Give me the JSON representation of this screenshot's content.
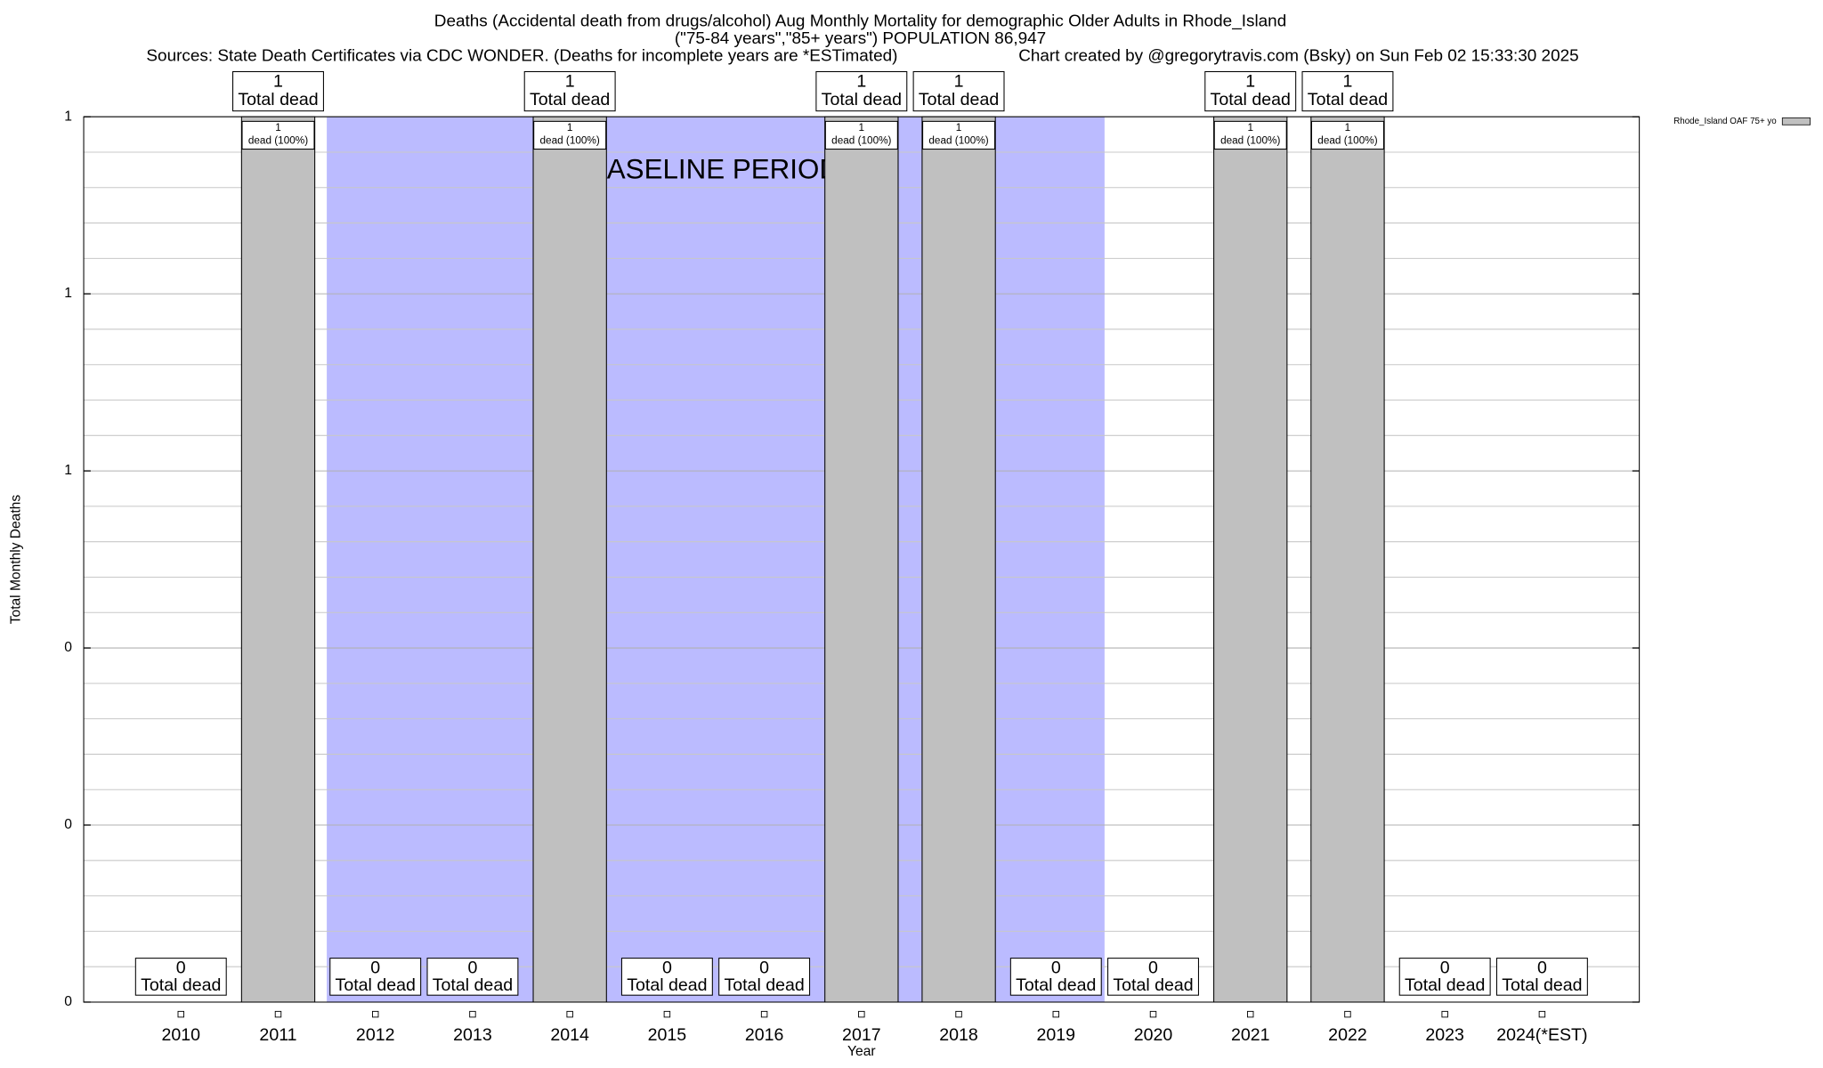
{
  "chart_data": {
    "type": "bar",
    "title": "Deaths (Accidental death from drugs/alcohol) Aug Monthly Mortality for demographic Older Adults in Rhode_Island",
    "subtitle": "(\"75-84 years\",\"85+ years\") POPULATION 86,947",
    "sources": "Sources: State Death Certificates via CDC WONDER. (Deaths for incomplete years are *ESTimated)",
    "credit": "Chart created by @gregorytravis.com (Bsky) on Sun Feb 02 15:33:30 2025",
    "x_label": "Year",
    "y_label": "Total Monthly Deaths",
    "categories": [
      "2010",
      "2011",
      "2012",
      "2013",
      "2014",
      "2015",
      "2016",
      "2017",
      "2018",
      "2019",
      "2020",
      "2021",
      "2022",
      "2023",
      "2024(*EST)"
    ],
    "series": [
      {
        "name": "Rhode_Island OAF 75+ yo",
        "color": "#c0c0c0",
        "values": [
          0,
          1,
          0,
          0,
          1,
          0,
          0,
          1,
          1,
          0,
          0,
          1,
          1,
          0,
          0
        ]
      }
    ],
    "total_label": "Total dead",
    "share_label": "dead (100%)",
    "baseline": {
      "label": "BASELINE PERIOD",
      "start": "2012",
      "end": "2019",
      "color": "#bbbbff"
    },
    "ylim": [
      0,
      1
    ],
    "yticks": [
      0,
      {
        "value": 0.2,
        "label": "0"
      },
      {
        "value": 0.4,
        "label": "0"
      },
      {
        "value": 0.6,
        "label": "1"
      },
      {
        "value": 0.8,
        "label": "1"
      },
      1
    ],
    "grid": true,
    "legend": "top-right"
  }
}
